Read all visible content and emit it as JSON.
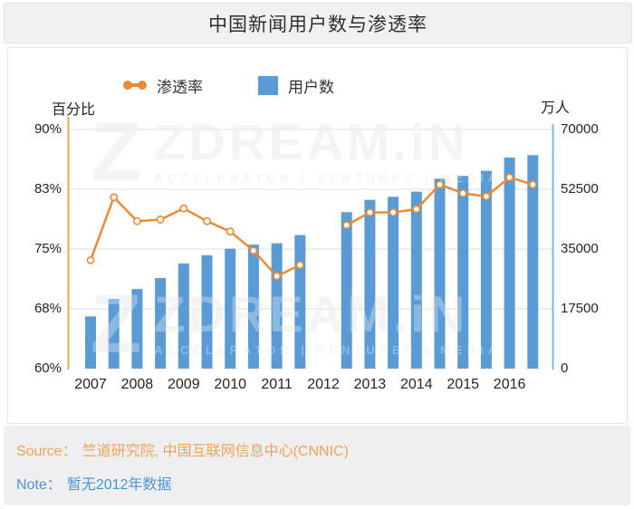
{
  "title": "中国新闻用户数与渗透率",
  "legend": {
    "line_label": "渗透率",
    "bar_label": "用户数"
  },
  "watermark": {
    "logo_letter": "Z",
    "brand": "ZDREAM.iN",
    "tagline": "ACCELERATOR | VENTURES | MEDIA"
  },
  "footer": {
    "source_label": "Source：",
    "source_text": "竺道研究院, 中国互联网信息中心(CNNIC)",
    "note_label": "Note：",
    "note_text": "暂无2012年数据"
  },
  "colors": {
    "bar": "#5B9BD5",
    "line": "#EE8A33",
    "left_axis": "#F5A54A",
    "right_axis": "#7FB5E5",
    "grid": "#DCDCDE",
    "marker_fill": "#FFFFFF"
  },
  "chart_data": {
    "type": "bar+line",
    "title": "中国新闻用户数与渗透率",
    "categories": [
      "2007",
      "2008",
      "2009",
      "2010",
      "2011",
      "2012",
      "2013",
      "2014",
      "2015",
      "2016"
    ],
    "slots_per_year": 2,
    "gap_slot": 10,
    "note": "暂无2012年数据",
    "left_axis": {
      "title": "百分比",
      "ticks": [
        "90%",
        "83%",
        "75%",
        "68%",
        "60%"
      ],
      "range": [
        60,
        90
      ]
    },
    "right_axis": {
      "title": "万人",
      "ticks": [
        "70000",
        "52500",
        "35000",
        "17500",
        "0"
      ],
      "range": [
        0,
        70000
      ]
    },
    "series": [
      {
        "name": "渗透率",
        "type": "line",
        "unit": "%",
        "axis": "left",
        "values": [
          73.6,
          81.5,
          78.5,
          78.7,
          80.1,
          78.5,
          77.2,
          74.8,
          71.6,
          73.0,
          null,
          78.0,
          79.6,
          79.6,
          80.0,
          83.1,
          82.0,
          81.6,
          84.0,
          83.1
        ]
      },
      {
        "name": "用户数",
        "type": "bar",
        "unit": "万人",
        "axis": "right",
        "values": [
          15300,
          20400,
          23300,
          26500,
          30800,
          33200,
          35100,
          36300,
          36700,
          39100,
          null,
          45800,
          49400,
          50300,
          51800,
          55600,
          56400,
          57900,
          61800,
          62500
        ]
      }
    ]
  }
}
